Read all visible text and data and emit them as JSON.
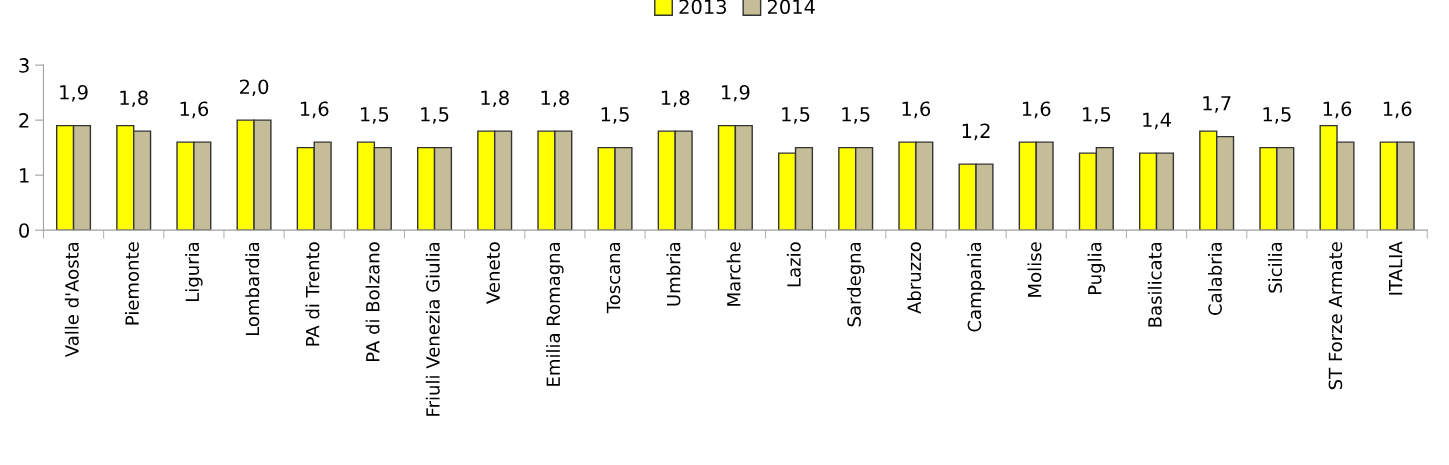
{
  "chart_data": {
    "type": "bar",
    "categories": [
      "Valle d'Aosta",
      "Piemonte",
      "Liguria",
      "Lombardia",
      "PA di Trento",
      "PA di Bolzano",
      "Friuli Venezia Giulia",
      "Veneto",
      "Emilia Romagna",
      "Toscana",
      "Umbria",
      "Marche",
      "Lazio",
      "Sardegna",
      "Abruzzo",
      "Campania",
      "Molise",
      "Puglia",
      "Basilicata",
      "Calabria",
      "Sicilia",
      "ST Forze Armate",
      "ITALIA"
    ],
    "series": [
      {
        "name": "2013",
        "color": "#ffff00",
        "values": [
          1.9,
          1.9,
          1.6,
          2.0,
          1.5,
          1.6,
          1.5,
          1.8,
          1.8,
          1.5,
          1.8,
          1.9,
          1.4,
          1.5,
          1.6,
          1.2,
          1.6,
          1.4,
          1.4,
          1.8,
          1.5,
          1.9,
          1.6
        ]
      },
      {
        "name": "2014",
        "color": "#c4bd97",
        "values": [
          1.9,
          1.8,
          1.6,
          2.0,
          1.6,
          1.5,
          1.5,
          1.8,
          1.8,
          1.5,
          1.8,
          1.9,
          1.5,
          1.5,
          1.6,
          1.2,
          1.6,
          1.5,
          1.4,
          1.7,
          1.5,
          1.6,
          1.6
        ],
        "value_labels": [
          "1,9",
          "1,8",
          "1,6",
          "2,0",
          "1,6",
          "1,5",
          "1,5",
          "1,8",
          "1,8",
          "1,5",
          "1,8",
          "1,9",
          "1,5",
          "1,5",
          "1,6",
          "1,2",
          "1,6",
          "1,5",
          "1,4",
          "1,7",
          "1,5",
          "1,6",
          "1,6"
        ]
      }
    ],
    "ylim": [
      0,
      3
    ],
    "yticks": [
      0,
      1,
      2,
      3
    ],
    "grid": false,
    "legend": "top"
  }
}
